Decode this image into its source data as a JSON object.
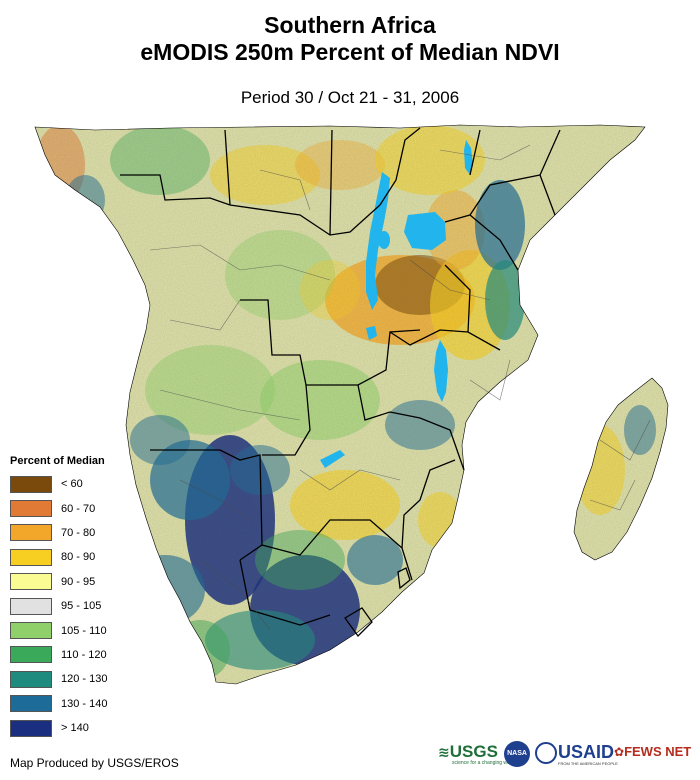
{
  "header": {
    "title_line1": "Southern Africa",
    "title_line2": "eMODIS 250m Percent of Median NDVI",
    "period": "Period 30 / Oct 21 - 31, 2006"
  },
  "legend": {
    "title": "Percent of Median",
    "classes": [
      {
        "label": "< 60",
        "color": "#7a4a0c"
      },
      {
        "label": "60 - 70",
        "color": "#e07a35"
      },
      {
        "label": "70 - 80",
        "color": "#f2a72a"
      },
      {
        "label": "80 - 90",
        "color": "#f6cf22"
      },
      {
        "label": "90 - 95",
        "color": "#fbfb93"
      },
      {
        "label": "95 - 105",
        "color": "#e1e1e1"
      },
      {
        "label": "105 - 110",
        "color": "#8fd06a"
      },
      {
        "label": "110 - 120",
        "color": "#3ba95a"
      },
      {
        "label": "120 - 130",
        "color": "#1f8b7e"
      },
      {
        "label": "130 - 140",
        "color": "#1d6b98"
      },
      {
        "label": "> 140",
        "color": "#1a2f80"
      }
    ]
  },
  "footer": {
    "credit": "Map Produced by USGS/EROS",
    "logos": {
      "usgs": "USGS",
      "usgs_tagline": "science for a changing world",
      "nasa": "NASA",
      "usaid": "USAID",
      "usaid_tagline": "FROM THE AMERICAN PEOPLE",
      "fews": "FEWS NET"
    }
  },
  "map": {
    "water_color": "#22b4ec",
    "border_color": "#000000",
    "subnational_color": "#4a4a4a"
  }
}
